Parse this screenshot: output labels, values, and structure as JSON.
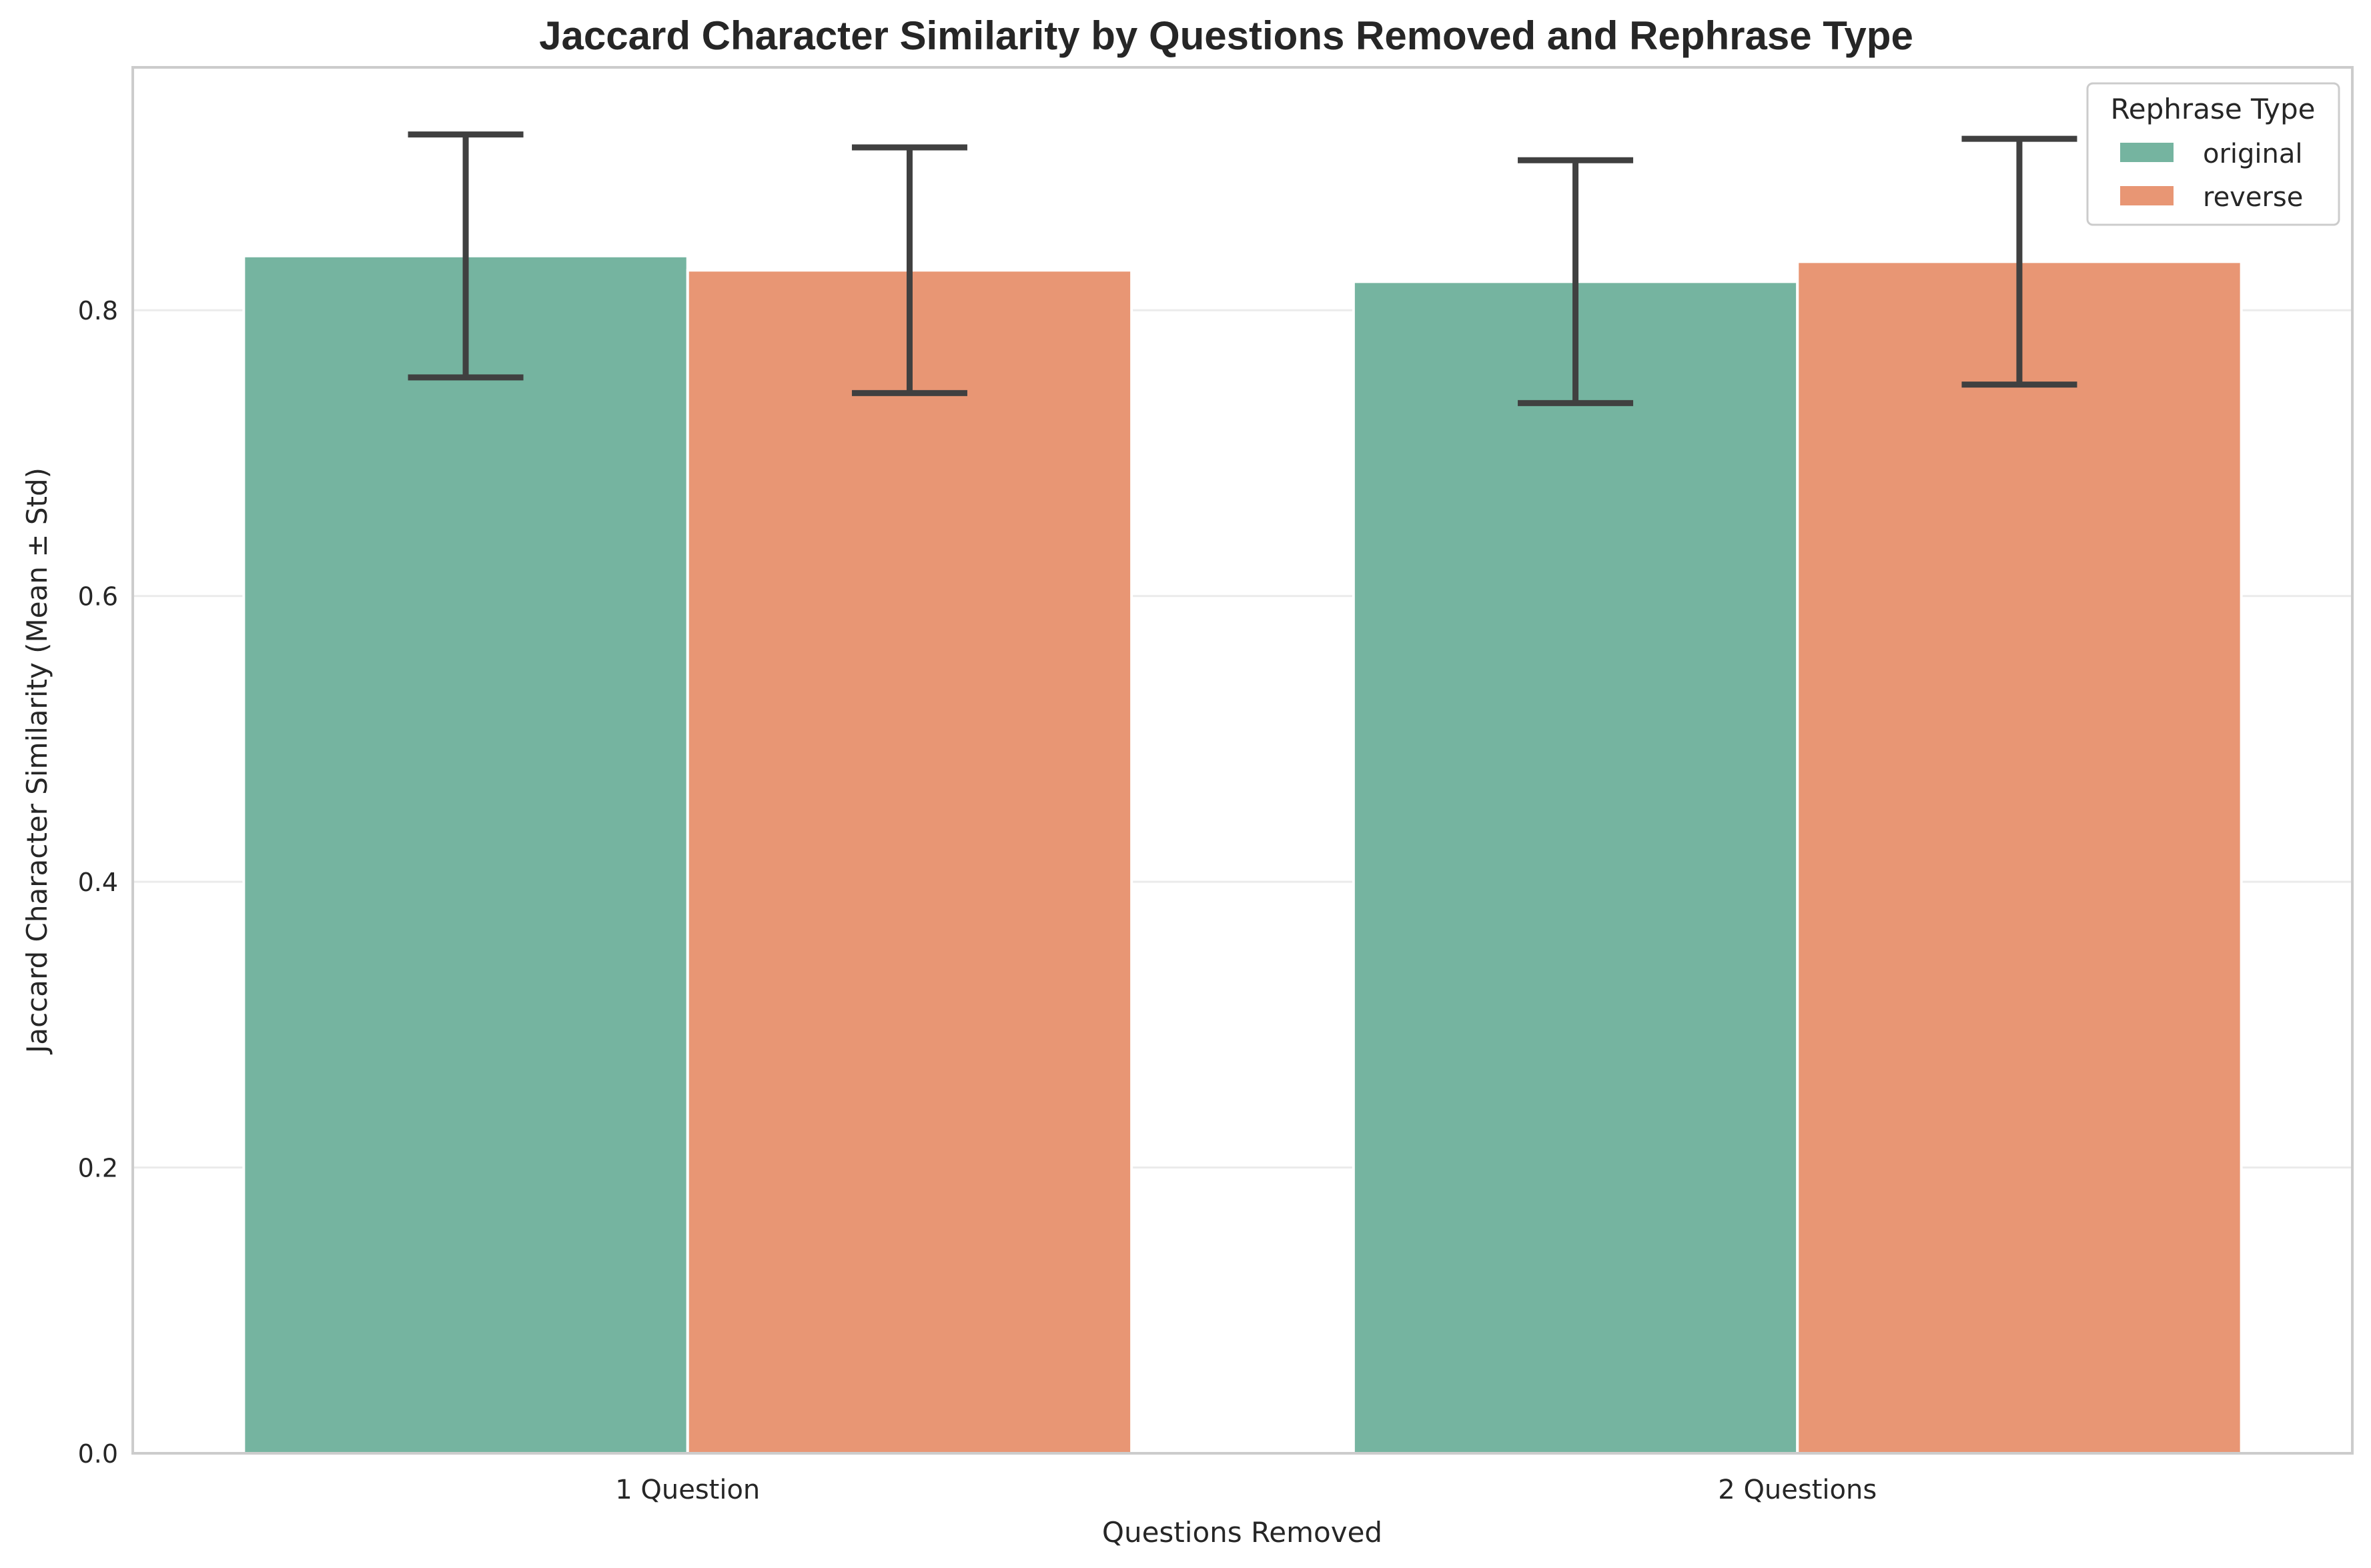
{
  "chart_data": {
    "type": "bar",
    "title": "Jaccard Character Similarity by Questions Removed and Rephrase Type",
    "xlabel": "Questions Removed",
    "ylabel": "Jaccard Character Similarity (Mean ± Std)",
    "categories": [
      "1 Question",
      "2 Questions"
    ],
    "series": [
      {
        "name": "original",
        "color": "#75b4a0",
        "values": [
          0.838,
          0.82
        ],
        "std": [
          0.085,
          0.085
        ]
      },
      {
        "name": "reverse",
        "color": "#e89674",
        "values": [
          0.828,
          0.834
        ],
        "std": [
          0.086,
          0.086
        ]
      }
    ],
    "ylim": [
      0,
      0.97
    ],
    "yticks": [
      0.0,
      0.2,
      0.4,
      0.6,
      0.8
    ],
    "ytick_labels": [
      "0.0",
      "0.2",
      "0.4",
      "0.6",
      "0.8"
    ],
    "grid": "horizontal",
    "legend": {
      "title": "Rephrase Type",
      "placement": "top-right"
    },
    "error_bar_color": "#404040",
    "grid_color": "#ebebeb",
    "spine_color": "#cccccc"
  }
}
